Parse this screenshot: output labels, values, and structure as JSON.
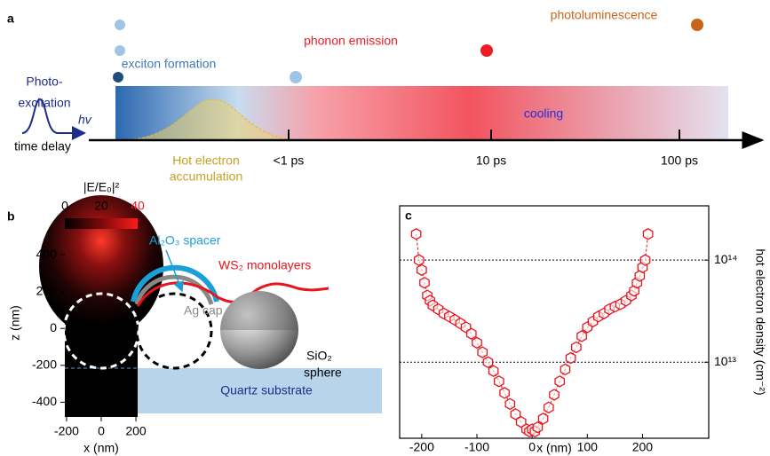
{
  "panel_a": {
    "label": "a",
    "processes": [
      "photoluminescence",
      "phonon emission",
      "exciton formation"
    ],
    "excitation": [
      "Photo-",
      "excitation"
    ],
    "hv": "hv",
    "axis_label": "time delay",
    "cooling": "cooling",
    "hot_electron": [
      "Hot electron",
      "accumulation"
    ],
    "ticks": [
      "<1 ps",
      "10 ps",
      "100 ps"
    ]
  },
  "panel_b": {
    "label": "b",
    "colorbar": {
      "label": "|E/E₀|²",
      "lim": [
        0,
        40
      ],
      "ticks": [
        0,
        20,
        40
      ]
    },
    "xlim": [
      -210,
      210
    ],
    "xticks": [
      -200,
      0,
      200
    ],
    "xlabel": "x (nm)",
    "ylim": [
      -480,
      540
    ],
    "yticks": [
      -400,
      -200,
      0,
      200,
      400
    ],
    "ylabel": "z (nm)",
    "labels": {
      "spacer": "Al₂O₃ spacer",
      "monolayer": "WS₂ monolayers",
      "cap": "Ag cap",
      "sphere": [
        "SiO₂",
        "sphere"
      ],
      "substrate": "Quartz substrate"
    }
  },
  "chart_data": {
    "type": "scatter",
    "panel_label": "c",
    "xlabel": "x (nm)",
    "ylabel": "hot electron density (cm⁻²)",
    "color": "#e8141c",
    "log_y": true,
    "grid": true,
    "x": [
      -210,
      -205,
      -200,
      -195,
      -190,
      -185,
      -180,
      -170,
      -160,
      -150,
      -140,
      -130,
      -120,
      -110,
      -100,
      -90,
      -80,
      -70,
      -60,
      -50,
      -40,
      -30,
      -20,
      -10,
      -5,
      0,
      5,
      10,
      20,
      30,
      40,
      50,
      60,
      70,
      80,
      90,
      100,
      110,
      120,
      130,
      140,
      150,
      160,
      170,
      180,
      185,
      190,
      195,
      200,
      205,
      210
    ],
    "values": [
      180000000000000.0,
      100000000000000.0,
      80000000000000.0,
      60000000000000.0,
      45000000000000.0,
      40000000000000.0,
      36000000000000.0,
      33000000000000.0,
      30000000000000.0,
      28000000000000.0,
      26000000000000.0,
      24000000000000.0,
      22000000000000.0,
      19000000000000.0,
      15500000000000.0,
      12500000000000.0,
      10000000000000.0,
      8200000000000.0,
      6500000000000.0,
      5000000000000.0,
      3900000000000.0,
      3100000000000.0,
      2600000000000.0,
      2200000000000.0,
      2100000000000.0,
      2200000000000.0,
      2100000000000.0,
      2300000000000.0,
      2800000000000.0,
      3600000000000.0,
      4800000000000.0,
      6500000000000.0,
      8500000000000.0,
      11000000000000.0,
      14000000000000.0,
      18000000000000.0,
      22000000000000.0,
      25000000000000.0,
      28000000000000.0,
      30000000000000.0,
      33000000000000.0,
      35000000000000.0,
      37000000000000.0,
      40000000000000.0,
      45000000000000.0,
      50000000000000.0,
      60000000000000.0,
      70000000000000.0,
      85000000000000.0,
      100000000000000.0,
      180000000000000.0
    ],
    "xlim": [
      -240,
      320
    ],
    "xticks": [
      -200,
      -100,
      0,
      100,
      200
    ],
    "ylim": [
      1800000000000.0,
      340000000000000.0
    ],
    "yticks": [
      {
        "value": 10000000000000.0,
        "label": "10¹³"
      },
      {
        "value": 100000000000000.0,
        "label": "10¹⁴"
      }
    ]
  }
}
